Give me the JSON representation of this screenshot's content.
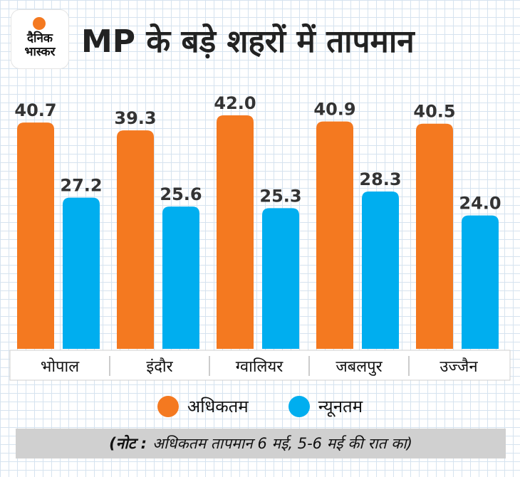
{
  "brand": {
    "line1": "दैनिक",
    "line2": "भास्कर",
    "accent": "#f47920"
  },
  "title": "MP के बड़े शहरों में तापमान",
  "chart_data": {
    "type": "bar",
    "categories": [
      "भोपाल",
      "इंदौर",
      "ग्वालियर",
      "जबलपुर",
      "उज्जैन"
    ],
    "series": [
      {
        "name": "अधिकतम",
        "color": "#f47920",
        "values": [
          40.7,
          39.3,
          42.0,
          40.9,
          40.5
        ]
      },
      {
        "name": "न्यूनतम",
        "color": "#00aeef",
        "values": [
          27.2,
          25.6,
          25.3,
          28.3,
          24.0
        ]
      }
    ],
    "value_labels": [
      [
        "40.7",
        "39.3",
        "42.0",
        "40.9",
        "40.5"
      ],
      [
        "27.2",
        "25.6",
        "25.3",
        "28.3",
        "24.0"
      ]
    ],
    "ylim": [
      0,
      42.0
    ],
    "grid": true,
    "legend_position": "bottom"
  },
  "note": {
    "prefix": "(नोट :",
    "text": "अधिकतम तापमान 6 मई, 5-6 मई की रात का)"
  }
}
